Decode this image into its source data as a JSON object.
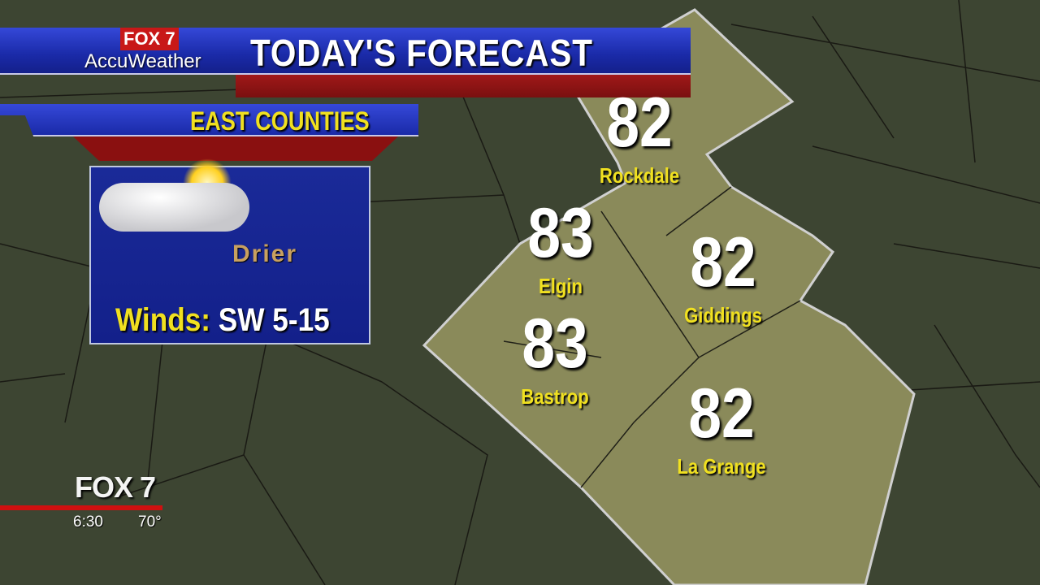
{
  "header": {
    "brand": "FOX 7",
    "brand_partner": "AccuWeather",
    "title": "TODAY'S FORECAST",
    "subtitle": "EAST COUNTIES"
  },
  "conditions": {
    "icon": "partly-sunny-icon",
    "description": "Drier",
    "winds_label": "Winds:",
    "winds_value": "SW 5-15"
  },
  "cities": [
    {
      "name": "Rockdale",
      "temp": "82"
    },
    {
      "name": "Elgin",
      "temp": "83"
    },
    {
      "name": "Giddings",
      "temp": "82"
    },
    {
      "name": "Bastrop",
      "temp": "83"
    },
    {
      "name": "La Grange",
      "temp": "82"
    }
  ],
  "station_bug": {
    "logo": "FOX 7",
    "time": "6:30",
    "temperature": "70°"
  },
  "colors": {
    "banner_blue": "#1a2aa8",
    "banner_red": "#8a1010",
    "label_yellow": "#f0e020",
    "map_dark": "#3a4230",
    "map_highlight": "#8a8a5a"
  }
}
